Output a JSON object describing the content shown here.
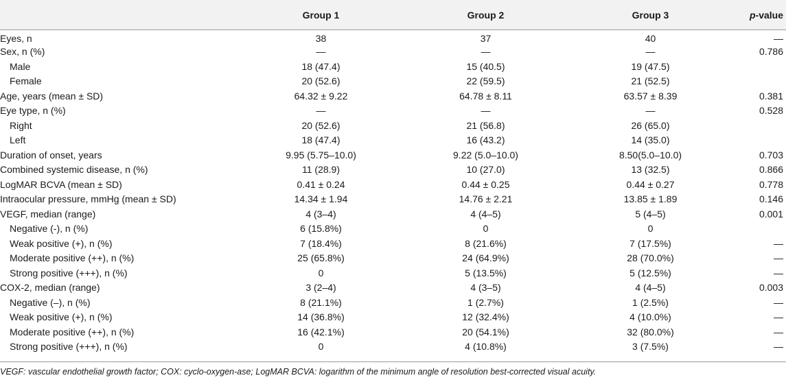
{
  "header": {
    "label": "",
    "group1": "Group 1",
    "group2": "Group 2",
    "group3": "Group 3",
    "p_italic": "p",
    "p_rest": "-value"
  },
  "rows": [
    {
      "label": "Eyes, n",
      "g1": "38",
      "g2": "37",
      "g3": "40",
      "p": "—"
    },
    {
      "label": "Sex, n (%)",
      "g1": "—",
      "g2": "—",
      "g3": "—",
      "p": "0.786"
    },
    {
      "label": "Male",
      "g1": "18 (47.4)",
      "g2": "15 (40.5)",
      "g3": "19 (47.5)",
      "p": ""
    },
    {
      "label": "Female",
      "g1": "20 (52.6)",
      "g2": "22 (59.5)",
      "g3": "21 (52.5)",
      "p": ""
    },
    {
      "label": "Age, years (mean ± SD)",
      "g1": "64.32 ± 9.22",
      "g2": "64.78 ± 8.11",
      "g3": "63.57 ± 8.39",
      "p": "0.381"
    },
    {
      "label": "Eye type, n (%)",
      "g1": "—",
      "g2": "—",
      "g3": "—",
      "p": "0.528"
    },
    {
      "label": "Right",
      "g1": "20 (52.6)",
      "g2": "21 (56.8)",
      "g3": "26 (65.0)",
      "p": ""
    },
    {
      "label": "Left",
      "g1": "18 (47.4)",
      "g2": "16 (43.2)",
      "g3": "14 (35.0)",
      "p": ""
    },
    {
      "label": "Duration of onset, years",
      "g1": "9.95 (5.75–10.0)",
      "g2": "9.22 (5.0–10.0)",
      "g3": "8.50(5.0–10.0)",
      "p": "0.703"
    },
    {
      "label": "Combined systemic disease, n (%)",
      "g1": "11 (28.9)",
      "g2": "10 (27.0)",
      "g3": "13 (32.5)",
      "p": "0.866"
    },
    {
      "label": "LogMAR BCVA (mean ± SD)",
      "g1": "0.41 ± 0.24",
      "g2": "0.44 ± 0.25",
      "g3": "0.44 ± 0.27",
      "p": "0.778"
    },
    {
      "label": "Intraocular pressure, mmHg (mean ± SD)",
      "g1": "14.34 ± 1.94",
      "g2": "14.76 ± 2.21",
      "g3": "13.85 ± 1.89",
      "p": "0.146"
    },
    {
      "label": "VEGF, median (range)",
      "g1": "4 (3–4)",
      "g2": "4 (4–5)",
      "g3": "5 (4–5)",
      "p": "0.001"
    },
    {
      "label": "Negative (-), n (%)",
      "g1": "6 (15.8%)",
      "g2": "0",
      "g3": "0",
      "p": ""
    },
    {
      "label": "Weak positive (+), n (%)",
      "g1": "7 (18.4%)",
      "g2": "8 (21.6%)",
      "g3": "7 (17.5%)",
      "p": "—"
    },
    {
      "label": "Moderate positive (++), n (%)",
      "g1": "25 (65.8%)",
      "g2": "24 (64.9%)",
      "g3": "28 (70.0%)",
      "p": "—"
    },
    {
      "label": "Strong positive (+++), n (%)",
      "g1": "0",
      "g2": "5 (13.5%)",
      "g3": "5 (12.5%)",
      "p": "—"
    },
    {
      "label": "COX-2, median (range)",
      "g1": "3 (2–4)",
      "g2": "4 (3–5)",
      "g3": "4 (4–5)",
      "p": "0.003"
    },
    {
      "label": "Negative (–), n (%)",
      "g1": "8 (21.1%)",
      "g2": "1 (2.7%)",
      "g3": "1 (2.5%)",
      "p": "—"
    },
    {
      "label": "Weak positive (+), n (%)",
      "g1": "14 (36.8%)",
      "g2": "12 (32.4%)",
      "g3": "4 (10.0%)",
      "p": "—"
    },
    {
      "label": "Moderate positive (++), n (%)",
      "g1": "16 (42.1%)",
      "g2": "20 (54.1%)",
      "g3": "32 (80.0%)",
      "p": "—"
    },
    {
      "label": "Strong positive (+++), n (%)",
      "g1": "0",
      "g2": "4 (10.8%)",
      "g3": "3 (7.5%)",
      "p": "—"
    }
  ],
  "footnote": "VEGF: vascular endothelial growth factor; COX: cyclo-oxygen-ase; LogMAR BCVA: logarithm of the minimum angle of resolution best-corrected visual acuity."
}
